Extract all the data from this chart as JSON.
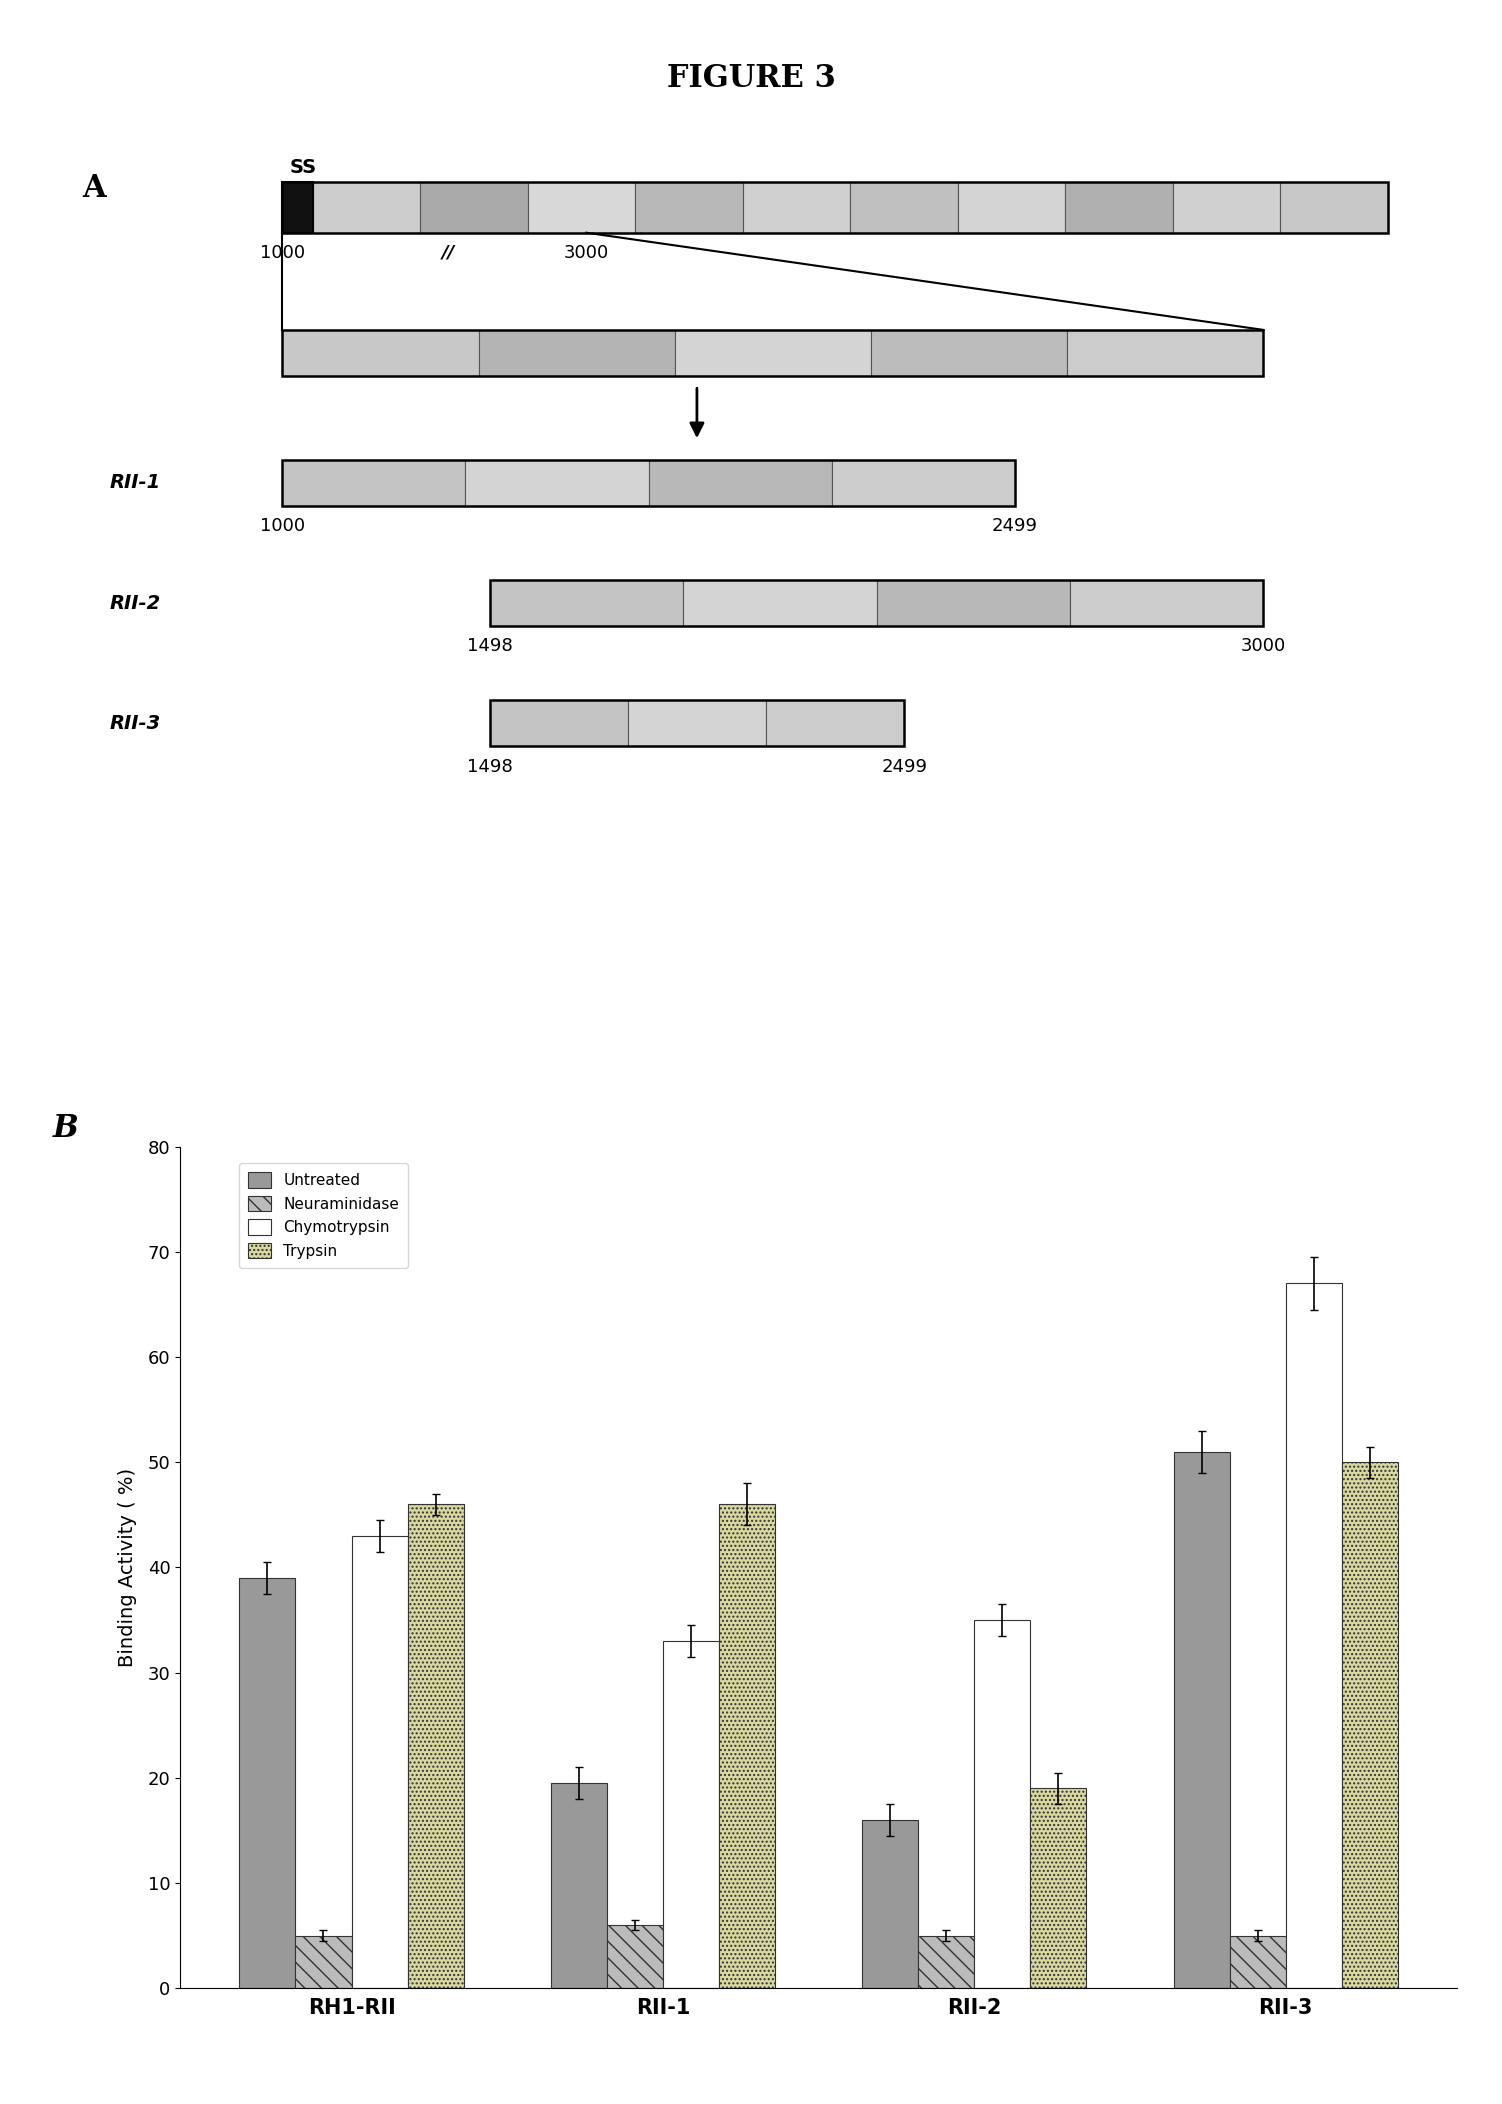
{
  "title": "FIGURE 3",
  "panel_A_label": "A",
  "panel_B_label": "B",
  "bar_groups": [
    "RH1-RII",
    "RII-1",
    "RII-2",
    "RII-3"
  ],
  "bar_labels": [
    "Untreated",
    "Neuraminidase",
    "Chymotrypsin",
    "Trypsin"
  ],
  "bar_values": [
    [
      39,
      5,
      43,
      46
    ],
    [
      19.5,
      6,
      33,
      46
    ],
    [
      16,
      5,
      35,
      19
    ],
    [
      51,
      5,
      67,
      50
    ]
  ],
  "bar_errors": [
    [
      1.5,
      0.5,
      1.5,
      1.0
    ],
    [
      1.5,
      0.5,
      1.5,
      2.0
    ],
    [
      1.5,
      0.5,
      1.5,
      1.5
    ],
    [
      2.0,
      0.5,
      2.5,
      1.5
    ]
  ],
  "ylabel": "Binding Activity ( %)",
  "ylim": [
    0,
    80
  ],
  "yticks": [
    0,
    10,
    20,
    30,
    40,
    50,
    60,
    70,
    80
  ]
}
